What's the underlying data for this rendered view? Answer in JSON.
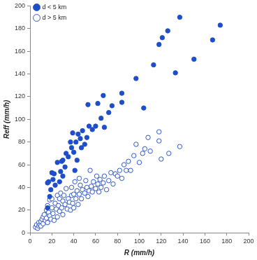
{
  "chart_data": {
    "type": "scatter",
    "x_label": "R (mm/h)",
    "y_label": "Reff (mm/h)",
    "xlim": [
      0,
      200
    ],
    "xticks": [
      0,
      20,
      40,
      60,
      80,
      100,
      120,
      140,
      160,
      180,
      200
    ],
    "ylim": [
      0,
      200
    ],
    "yticks": [
      0,
      20,
      40,
      60,
      80,
      100,
      120,
      140,
      160,
      180,
      200
    ],
    "grid": false,
    "legend": "top-left",
    "series": [
      {
        "name": "d < 5 km",
        "color": "#1f4fc8",
        "marker": "circle",
        "x": [
          16,
          16,
          17,
          18,
          19,
          20,
          21,
          22,
          23,
          25,
          27,
          28,
          29,
          30,
          30,
          32,
          33,
          35,
          37,
          38,
          39,
          40,
          41,
          42,
          43,
          44,
          46,
          47,
          48,
          50,
          52,
          53,
          54,
          57,
          60,
          62,
          65,
          67,
          68,
          72,
          75,
          84,
          84,
          97,
          104,
          113,
          118,
          121,
          126,
          133,
          137,
          150,
          167,
          174
        ],
        "values": [
          22,
          44,
          45,
          32,
          38,
          53,
          47,
          52,
          42,
          62,
          45,
          54,
          63,
          64,
          50,
          58,
          70,
          67,
          80,
          75,
          88,
          71,
          55,
          80,
          64,
          87,
          83,
          75,
          90,
          78,
          84,
          113,
          94,
          91,
          94,
          114,
          101,
          121,
          93,
          106,
          112,
          123,
          115,
          136,
          110,
          148,
          166,
          172,
          178,
          141,
          190,
          153,
          170,
          183
        ]
      },
      {
        "name": "d > 5 km",
        "color": "#2e57c4",
        "marker": "open_circle",
        "x": [
          5,
          6,
          7,
          8,
          8,
          9,
          10,
          10,
          11,
          12,
          12,
          13,
          14,
          15,
          15,
          16,
          16,
          17,
          18,
          18,
          19,
          20,
          20,
          21,
          22,
          23,
          24,
          25,
          25,
          26,
          27,
          27,
          28,
          29,
          30,
          30,
          31,
          32,
          33,
          34,
          35,
          36,
          37,
          38,
          38,
          39,
          40,
          40,
          41,
          42,
          43,
          44,
          45,
          45,
          46,
          47,
          48,
          50,
          51,
          52,
          53,
          54,
          55,
          56,
          57,
          58,
          60,
          61,
          62,
          63,
          64,
          65,
          67,
          68,
          70,
          72,
          74,
          76,
          78,
          80,
          82,
          84,
          86,
          88,
          90,
          92,
          95,
          97,
          100,
          103,
          105,
          108,
          110,
          118,
          118,
          120,
          127,
          137
        ],
        "values": [
          5,
          7,
          4,
          6,
          9,
          7,
          10,
          6,
          12,
          8,
          14,
          16,
          11,
          20,
          13,
          24,
          9,
          18,
          29,
          15,
          12,
          22,
          30,
          17,
          11,
          26,
          21,
          33,
          14,
          24,
          30,
          19,
          35,
          22,
          28,
          16,
          33,
          25,
          39,
          21,
          30,
          27,
          20,
          33,
          40,
          26,
          34,
          22,
          45,
          30,
          37,
          25,
          48,
          34,
          42,
          30,
          38,
          35,
          46,
          40,
          32,
          37,
          55,
          41,
          36,
          45,
          39,
          50,
          43,
          36,
          47,
          40,
          44,
          50,
          38,
          46,
          53,
          43,
          52,
          50,
          55,
          48,
          60,
          55,
          63,
          55,
          68,
          78,
          62,
          70,
          74,
          84,
          72,
          89,
          81,
          65,
          70,
          76
        ]
      }
    ]
  }
}
